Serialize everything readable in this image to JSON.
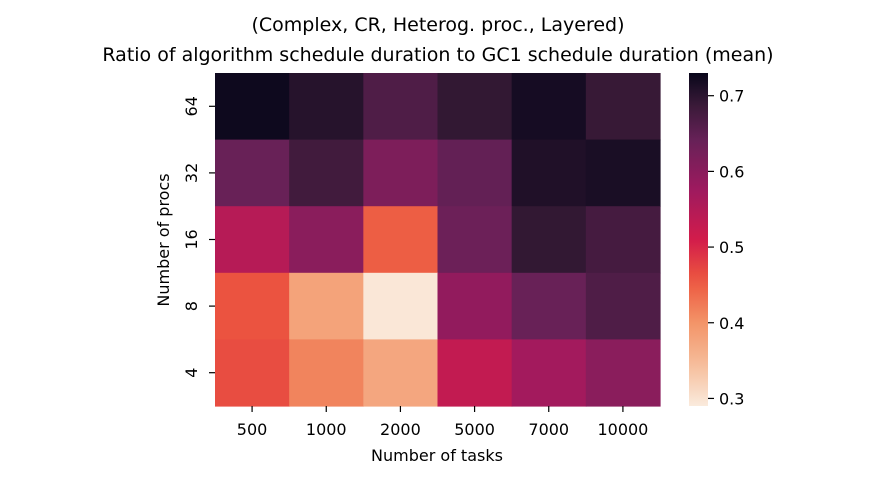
{
  "chart_data": {
    "type": "heatmap",
    "title_line1": "(Complex, CR, Heterog. proc., Layered)",
    "title_line2": "Ratio of algorithm schedule duration to GC1 schedule duration (mean)",
    "xlabel": "Number of tasks",
    "ylabel": "Number of procs",
    "x_categories": [
      "500",
      "1000",
      "2000",
      "5000",
      "7000",
      "10000"
    ],
    "y_categories": [
      "64",
      "32",
      "16",
      "8",
      "4"
    ],
    "values": [
      [
        0.725,
        0.705,
        0.665,
        0.695,
        0.718,
        0.69
      ],
      [
        0.64,
        0.68,
        0.615,
        0.645,
        0.71,
        0.715
      ],
      [
        0.545,
        0.6,
        0.45,
        0.635,
        0.695,
        0.675
      ],
      [
        0.46,
        0.38,
        0.295,
        0.59,
        0.64,
        0.665
      ],
      [
        0.465,
        0.415,
        0.375,
        0.53,
        0.57,
        0.6
      ]
    ],
    "vmin": 0.29,
    "vmax": 0.73,
    "colorbar_ticks": [
      "0.3",
      "0.4",
      "0.5",
      "0.6",
      "0.7"
    ],
    "colormap": "rocket_r"
  }
}
